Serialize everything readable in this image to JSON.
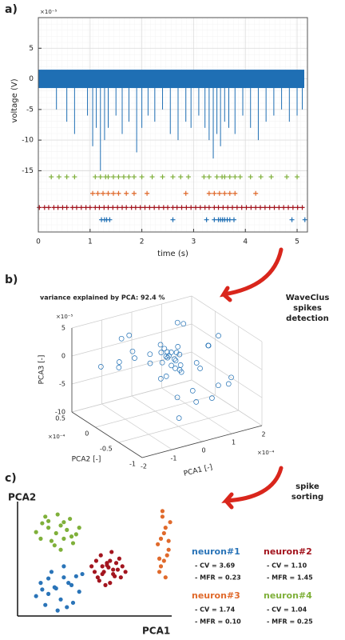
{
  "chart_data": [
    {
      "type": "line",
      "panel_label": "a)",
      "y_multiplier": "×10⁻⁵",
      "xlabel": "time (s)",
      "ylabel": "voltage (V)",
      "xlim": [
        0,
        5.2
      ],
      "ylim": [
        -25,
        10
      ],
      "xticks": [
        0,
        1,
        2,
        3,
        4,
        5
      ],
      "yticks": [
        5,
        0,
        -5,
        -10,
        -15
      ],
      "grid": true,
      "noise_band": [
        -1.5,
        1.5
      ],
      "series": [
        {
          "color": "#1f6fb4",
          "x": [
            0.35,
            0.55,
            0.7,
            0.95,
            1.05,
            1.12,
            1.2,
            1.28,
            1.35,
            1.5,
            1.62,
            1.75,
            1.9,
            2.0,
            2.12,
            2.25,
            2.4,
            2.55,
            2.7,
            2.85,
            2.95,
            3.1,
            3.22,
            3.3,
            3.38,
            3.45,
            3.52,
            3.6,
            3.68,
            3.8,
            3.95,
            4.1,
            4.25,
            4.4,
            4.55,
            4.7,
            4.85,
            5.0,
            5.1
          ],
          "values": [
            -5,
            -7,
            -9,
            -6,
            -11,
            -8,
            -15,
            -10,
            -8,
            -6,
            -9,
            -7,
            -12,
            -8,
            -6,
            -7,
            -5,
            -9,
            -10,
            -7,
            -8,
            -6,
            -8,
            -10,
            -13,
            -9,
            -11,
            -7,
            -8,
            -9,
            -6,
            -8,
            -10,
            -7,
            -6,
            -5,
            -7,
            -6,
            -5
          ]
        }
      ],
      "raster": [
        {
          "color": "#7fb03a",
          "y": -16,
          "x": [
            0.25,
            0.4,
            0.55,
            0.7,
            1.1,
            1.2,
            1.3,
            1.35,
            1.45,
            1.55,
            1.65,
            1.75,
            1.85,
            2.0,
            2.2,
            2.4,
            2.6,
            2.75,
            2.9,
            3.2,
            3.3,
            3.45,
            3.55,
            3.6,
            3.7,
            3.8,
            3.9,
            4.1,
            4.3,
            4.5,
            4.8,
            5.0
          ]
        },
        {
          "color": "#e06a2c",
          "y": -18.7,
          "x": [
            1.05,
            1.15,
            1.25,
            1.35,
            1.45,
            1.55,
            1.7,
            1.85,
            2.1,
            2.85,
            3.3,
            3.4,
            3.5,
            3.6,
            3.7,
            3.8,
            4.2
          ]
        },
        {
          "color": "#a3151f",
          "y": -21,
          "x": [
            0.02,
            0.12,
            0.2,
            0.3,
            0.38,
            0.47,
            0.55,
            0.66,
            0.74,
            0.83,
            0.92,
            1.0,
            1.1,
            1.18,
            1.27,
            1.35,
            1.44,
            1.53,
            1.62,
            1.7,
            1.8,
            1.88,
            1.97,
            2.06,
            2.15,
            2.24,
            2.33,
            2.42,
            2.5,
            2.6,
            2.68,
            2.77,
            2.86,
            2.95,
            3.04,
            3.13,
            3.22,
            3.3,
            3.4,
            3.48,
            3.57,
            3.66,
            3.75,
            3.84,
            3.93,
            4.02,
            4.11,
            4.2,
            4.29,
            4.38,
            4.47,
            4.56,
            4.65,
            4.74,
            4.83,
            4.92,
            5.01,
            5.1
          ]
        },
        {
          "color": "#1f6fb4",
          "y": -23,
          "x": [
            1.22,
            1.28,
            1.32,
            1.38,
            2.6,
            3.25,
            3.4,
            3.48,
            3.52,
            3.56,
            3.6,
            3.65,
            3.7,
            3.78,
            4.9,
            5.15
          ]
        }
      ]
    },
    {
      "type": "scatter3d",
      "panel_label": "b)",
      "title": "variance explained by PCA: 92.4 %",
      "annotation": [
        "WaveClus",
        "spikes",
        "detection"
      ],
      "xlabel": "PCA1 [-]",
      "ylabel": "PCA2 [-]",
      "zlabel": "PCA3 [-]",
      "x_multiplier": "×10⁻⁴",
      "y_multiplier": "×10⁻⁴",
      "z_multiplier": "×10⁻⁵",
      "xlim": [
        -2,
        2
      ],
      "ylim": [
        -1,
        0.5
      ],
      "zlim": [
        -10,
        5
      ],
      "xticks": [
        -2,
        -1,
        0,
        1,
        2
      ],
      "yticks": [
        -1,
        -0.5,
        0,
        0.5
      ],
      "zticks": [
        -10,
        -5,
        0,
        5
      ],
      "grid": true,
      "color": "#1f6fb4",
      "x": [
        0.1,
        0.3,
        0.2,
        0.4,
        0.0,
        0.25,
        0.15,
        0.35,
        0.05,
        0.45,
        0.2,
        0.3,
        0.1,
        0.5,
        -0.1,
        0.6,
        0.25,
        0.4,
        0.15,
        0.3,
        -0.6,
        -0.9,
        -1.2,
        -0.4,
        1.0,
        1.3,
        1.6,
        0.8,
        -1.5,
        1.8,
        0.9,
        -0.2,
        1.2,
        0.5,
        -0.8,
        0.7,
        1.5,
        -1.0,
        0.3,
        0.6,
        -0.3,
        1.1,
        0.0,
        0.9,
        -0.5
      ],
      "y": [
        -0.2,
        -0.1,
        -0.3,
        -0.2,
        -0.15,
        -0.25,
        -0.1,
        -0.3,
        -0.2,
        -0.15,
        0.0,
        -0.35,
        -0.05,
        -0.2,
        -0.3,
        -0.1,
        -0.4,
        0.0,
        -0.25,
        -0.15,
        0.1,
        0.2,
        0.0,
        0.3,
        -0.5,
        -0.3,
        -0.6,
        -0.7,
        0.2,
        -0.2,
        0.1,
        -0.6,
        -0.8,
        0.2,
        -0.4,
        -0.9,
        0.0,
        -0.2,
        0.3,
        -0.5,
        -0.7,
        0.1,
        -0.8,
        -0.3,
        0.4
      ],
      "z": [
        0.5,
        0.0,
        -1.0,
        1.0,
        -0.5,
        0.3,
        1.5,
        -1.5,
        0.8,
        -0.8,
        0.2,
        -0.3,
        2.0,
        0.5,
        -2.0,
        1.2,
        -1.2,
        0.0,
        -0.7,
        0.9,
        1.0,
        -2.0,
        0.5,
        2.5,
        3.0,
        1.5,
        -3.0,
        -5.0,
        -1.0,
        2.0,
        4.0,
        -4.0,
        -2.5,
        -6.0,
        3.5,
        -1.5,
        -4.5,
        2.0,
        -3.5,
        0.5,
        -7.0,
        3.5,
        -2.0,
        -8.0,
        1.5
      ]
    },
    {
      "type": "scatter",
      "panel_label": "c)",
      "annotation": [
        "spike",
        "sorting"
      ],
      "xlabel": "PCA1",
      "ylabel": "PCA2",
      "xlim": [
        0,
        100
      ],
      "ylim": [
        0,
        100
      ],
      "series": [
        {
          "name": "neuron#1",
          "color": "#2a74b8",
          "cv": "- CV = 3.69",
          "mfr": "- MFR = 0.23",
          "x": [
            15,
            20,
            25,
            30,
            35,
            40,
            18,
            22,
            28,
            33,
            12,
            38,
            26,
            30,
            20,
            36,
            24,
            42,
            16,
            32
          ],
          "values": [
            30,
            20,
            25,
            35,
            28,
            22,
            10,
            40,
            15,
            30,
            18,
            36,
            5,
            45,
            34,
            12,
            26,
            38,
            24,
            8
          ]
        },
        {
          "name": "neuron#2",
          "color": "#a3151f",
          "cv": "- CV = 1.10",
          "mfr": "- MFR = 1.45",
          "x": [
            50,
            55,
            60,
            65,
            52,
            58,
            62,
            68,
            54,
            60,
            48,
            66,
            56,
            63,
            59,
            70,
            51,
            57,
            61,
            64,
            53,
            67,
            58,
            55,
            62
          ],
          "values": [
            40,
            45,
            50,
            42,
            35,
            48,
            38,
            45,
            55,
            30,
            45,
            52,
            40,
            36,
            44,
            40,
            50,
            28,
            58,
            48,
            32,
            35,
            46,
            38,
            42
          ]
        },
        {
          "name": "neuron#3",
          "color": "#e06a2c",
          "cv": "- CV = 1.74",
          "mfr": "- MFR = 0.10",
          "x": [
            92,
            95,
            98,
            93,
            96,
            94,
            97,
            91,
            95,
            99,
            93,
            96,
            94,
            98,
            92
          ],
          "values": [
            40,
            50,
            60,
            70,
            80,
            90,
            55,
            65,
            75,
            85,
            45,
            35,
            95,
            68,
            52
          ]
        },
        {
          "name": "neuron#4",
          "color": "#7fb03a",
          "cv": "- CV = 1.04",
          "mfr": "- MFR = 0.25",
          "x": [
            15,
            20,
            25,
            30,
            35,
            18,
            22,
            28,
            32,
            38,
            12,
            26,
            34,
            40,
            24,
            30,
            16,
            36,
            20,
            28
          ],
          "values": [
            70,
            80,
            75,
            85,
            72,
            90,
            68,
            82,
            78,
            74,
            76,
            92,
            88,
            80,
            64,
            70,
            84,
            66,
            86,
            60
          ]
        }
      ]
    }
  ]
}
